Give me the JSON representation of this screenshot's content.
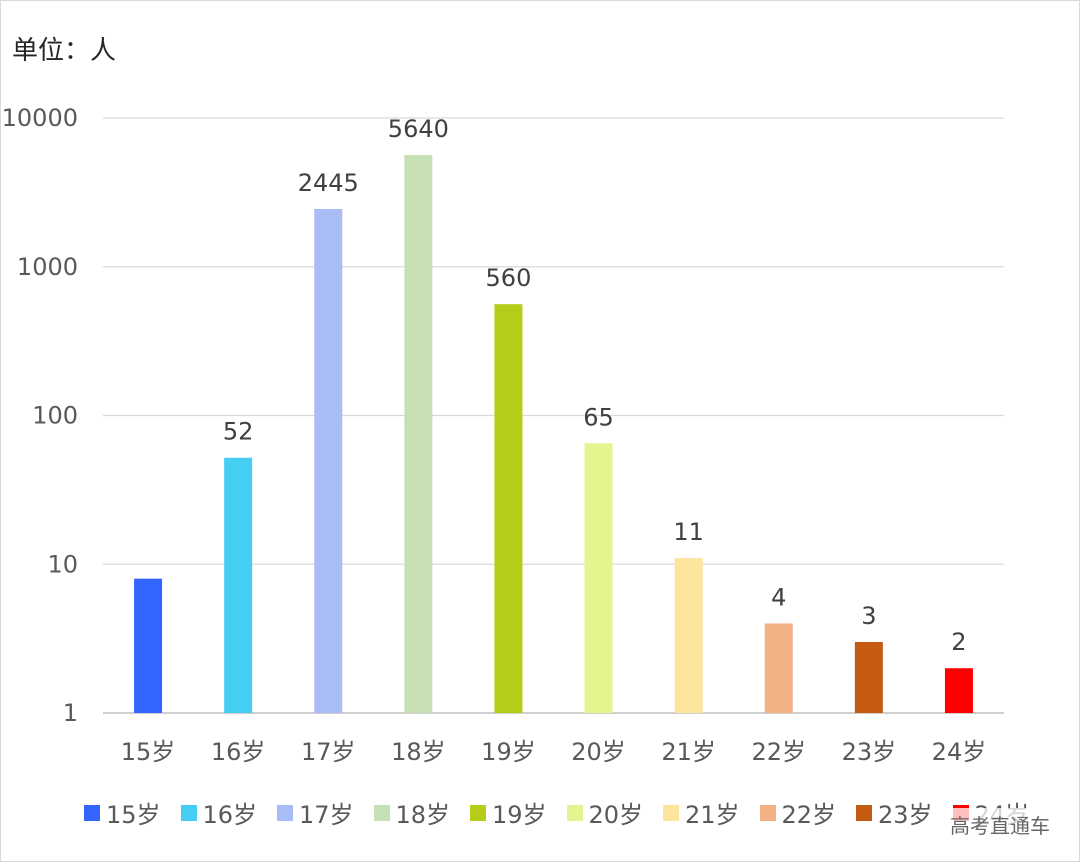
{
  "unit_label": "单位：人",
  "watermark": "高考直通车",
  "chart_data": {
    "type": "bar",
    "yscale": "log",
    "ylim": [
      1,
      10000
    ],
    "yticks": [
      "1",
      "10",
      "100",
      "1000",
      "10000"
    ],
    "grid": true,
    "legend_position": "bottom",
    "categories": [
      "15岁",
      "16岁",
      "17岁",
      "18岁",
      "19岁",
      "20岁",
      "21岁",
      "22岁",
      "23岁",
      "24岁"
    ],
    "values": [
      8,
      52,
      2445,
      5640,
      560,
      65,
      11,
      4,
      3,
      2
    ],
    "data_labels": [
      "",
      "52",
      "2445",
      "5640",
      "560",
      "65",
      "11",
      "4",
      "3",
      "2"
    ],
    "colors": [
      "#3366ff",
      "#45cef4",
      "#a9bcf5",
      "#c6e0b4",
      "#b5cc18",
      "#e2f58f",
      "#fde59d",
      "#f4b183",
      "#c55a11",
      "#ff0000"
    ]
  }
}
